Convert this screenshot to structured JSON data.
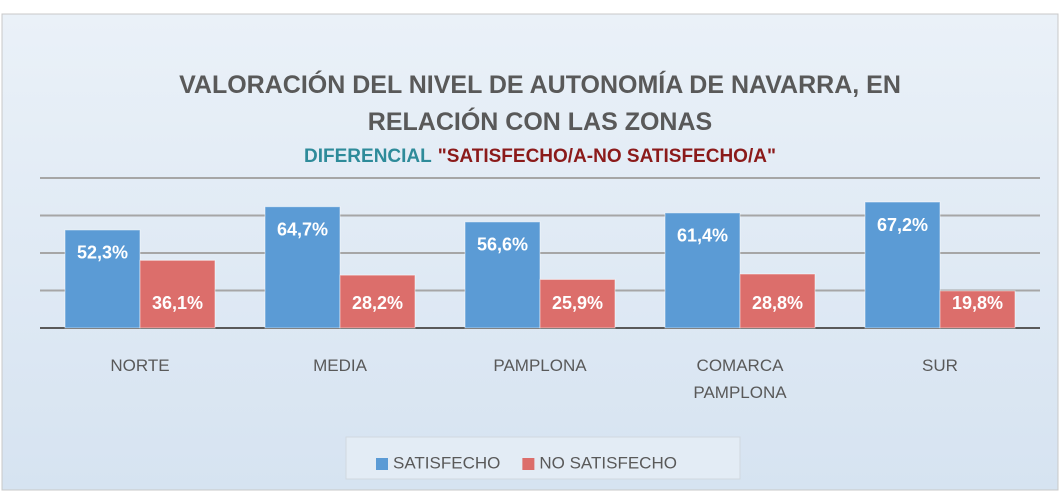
{
  "chart_data": {
    "type": "bar",
    "title": "VALORACIÓN DEL NIVEL DE AUTONOMÍA DE NAVARRA, EN RELACIÓN CON LAS ZONAS",
    "subtitle": [
      "DIFERENCIAL",
      "\"SATISFECHO/A-NO SATISFECHO/A\""
    ],
    "categories": [
      "NORTE",
      "MEDIA",
      "PAMPLONA",
      "COMARCA PAMPLONA",
      "SUR"
    ],
    "series": [
      {
        "name": "SATISFECHO",
        "color": "#5b9bd5",
        "values": [
          52.3,
          64.7,
          56.6,
          61.4,
          67.2
        ],
        "value_labels": [
          "52,3%",
          "64,7%",
          "56,6%",
          "61,4%",
          "67,2%"
        ]
      },
      {
        "name": "NO SATISFECHO",
        "color": "#dc6e6b",
        "values": [
          36.1,
          28.2,
          25.9,
          28.8,
          19.8
        ],
        "value_labels": [
          "36,1%",
          "28,2%",
          "25,9%",
          "28,8%",
          "19,8%"
        ]
      }
    ],
    "ylim": [
      0,
      80
    ],
    "yticks": [
      0,
      20,
      40,
      60,
      80
    ],
    "grid": true,
    "legend": "bottom"
  }
}
